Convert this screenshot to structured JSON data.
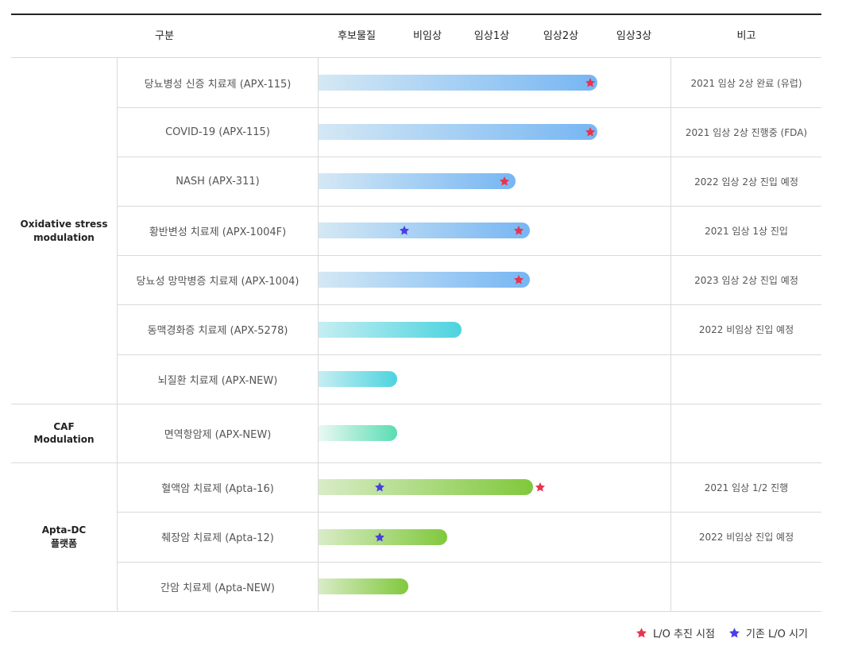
{
  "header": {
    "category": "구분",
    "stages": [
      "후보물질",
      "비임상",
      "임상1상",
      "임상2상",
      "임상3상"
    ],
    "note": "비고"
  },
  "colors": {
    "lo_star": "#e8344e",
    "existing_star": "#4a3ee6",
    "bar_blue": [
      "#d4e8f4",
      "#76b6f3"
    ],
    "bar_cyan": [
      "#c5eef2",
      "#4dd3df"
    ],
    "bar_mint": [
      "#eaf8f3",
      "#59ddb3"
    ],
    "bar_green": [
      "#d8ecc6",
      "#80c83c"
    ]
  },
  "groups": [
    {
      "label": "Oxidative stress\nmodulation",
      "rows": 7
    },
    {
      "label": "CAF\nModulation",
      "rows": 1
    },
    {
      "label": "Apta-DC\n플랫폼",
      "rows": 3
    }
  ],
  "chart_data": {
    "type": "bar",
    "orientation": "horizontal",
    "x_categories": [
      "후보물질",
      "비임상",
      "임상1상",
      "임상2상",
      "임상3상"
    ],
    "x_unit": "development stage (0 = start of 후보물질, 5 = end of 임상3상)",
    "xlim": [
      0,
      5
    ],
    "rows": [
      {
        "name": "당뇨병성 신증 치료제 (APX-115)",
        "bar_style": "blue",
        "progress": 3.9,
        "lo_star": 3.8,
        "existing_star": null,
        "note": "2021 임상 2상 완료 (유럽)"
      },
      {
        "name": "COVID-19 (APX-115)",
        "bar_style": "blue",
        "progress": 3.9,
        "lo_star": 3.8,
        "existing_star": null,
        "note": "2021 임상 2상 진행중 (FDA)"
      },
      {
        "name": "NASH (APX-311)",
        "bar_style": "blue",
        "progress": 2.75,
        "lo_star": 2.6,
        "existing_star": null,
        "note": "2022 임상 2상 진입 예정"
      },
      {
        "name": "황반변성 치료제 (APX-1004F)",
        "bar_style": "blue",
        "progress": 2.95,
        "lo_star": 2.8,
        "existing_star": 1.2,
        "note": "2021 임상 1상 진입"
      },
      {
        "name": "당뇨성 망막병증 치료제 (APX-1004)",
        "bar_style": "blue",
        "progress": 2.95,
        "lo_star": 2.8,
        "existing_star": null,
        "note": "2023 임상 2상 진입 예정"
      },
      {
        "name": "동맥경화증 치료제 (APX-5278)",
        "bar_style": "cyan",
        "progress": 2.0,
        "lo_star": null,
        "existing_star": null,
        "note": "2022 비임상 진입 예정"
      },
      {
        "name": "뇌질환 치료제 (APX-NEW)",
        "bar_style": "cyan",
        "progress": 1.1,
        "lo_star": null,
        "existing_star": null,
        "note": ""
      },
      {
        "name": "면역항암제 (APX-NEW)",
        "bar_style": "mint",
        "progress": 1.1,
        "lo_star": null,
        "existing_star": null,
        "note": ""
      },
      {
        "name": "혈액암 치료제 (Apta-16)",
        "bar_style": "green",
        "progress": 3.0,
        "lo_star": 3.1,
        "existing_star": 0.85,
        "note": "2021 임상 1/2 진행"
      },
      {
        "name": "췌장암 치료제 (Apta-12)",
        "bar_style": "green",
        "progress": 1.8,
        "lo_star": null,
        "existing_star": 0.85,
        "note": "2022 비임상 진입 예정"
      },
      {
        "name": "간암 치료제 (Apta-NEW)",
        "bar_style": "green",
        "progress": 1.25,
        "lo_star": null,
        "existing_star": null,
        "note": ""
      }
    ],
    "legend": [
      {
        "label": "L/O 추진 시점",
        "color": "#e8344e"
      },
      {
        "label": "기존 L/O 시기",
        "color": "#4a3ee6"
      }
    ]
  }
}
